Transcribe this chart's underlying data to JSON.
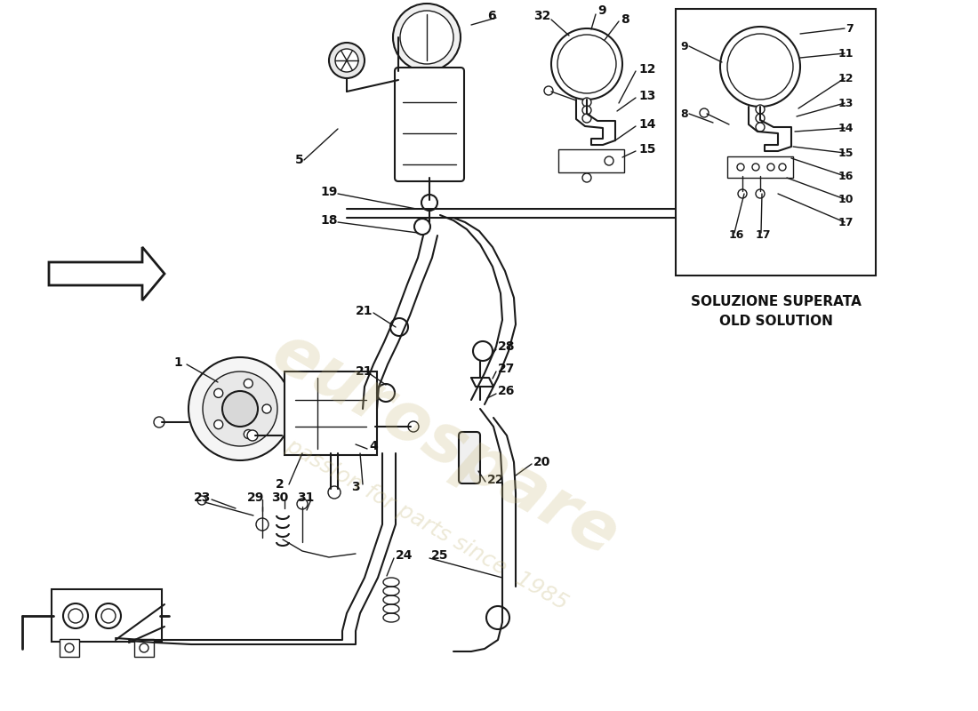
{
  "bg_color": "#ffffff",
  "lc": "#1a1a1a",
  "label_color": "#111111",
  "wm_color1": "#c8b87a",
  "wm_color2": "#b8a860",
  "box_label_line1": "SOLUZIONE SUPERATA",
  "box_label_line2": "OLD SOLUTION",
  "fig_w": 11.0,
  "fig_h": 8.0,
  "dpi": 100
}
